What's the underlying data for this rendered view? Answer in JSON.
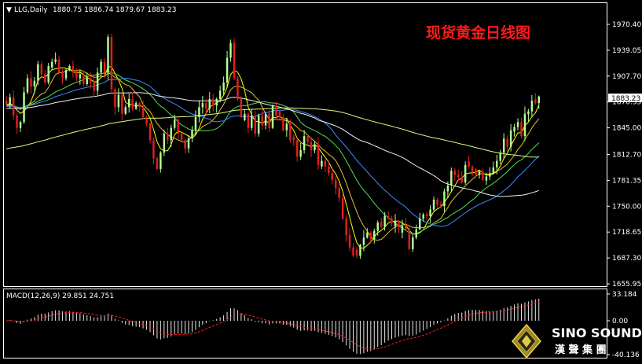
{
  "header": {
    "symbol": "LLG,Daily",
    "ohlc": "1880.75 1886.74 1879.67 1883.23"
  },
  "title": "现货黄金日线图",
  "macd_header": "MACD(12,26,9) 29.851 24.751",
  "brand": {
    "name": "SINO SOUND",
    "chinese": "漢 聲 集 團"
  },
  "colors": {
    "background": "#000000",
    "up_candle": "#b4ff96",
    "down_candle": "#e61e1e",
    "grid": "#3a3a3a",
    "axis": "#ffffff",
    "title": "#ff1a1a",
    "ma5": "#ffff00",
    "ma10": "#e0c030",
    "ma20": "#50e050",
    "ma30": "#3c8cff",
    "ma60": "#f0f0f0",
    "ma120": "#d8ff80",
    "macd_hist": "#e8e8e8",
    "macd_signal": "#ff2020"
  },
  "chart_data": [
    {
      "type": "candlestick",
      "title": "现货黄金日线图",
      "price_axis_ticks": [
        1970.4,
        1939.05,
        1907.7,
        1876.35,
        1845.0,
        1812.7,
        1781.35,
        1750.0,
        1718.65,
        1687.3,
        1655.95
      ],
      "last_price": 1883.23,
      "ylim": [
        1655.95,
        1985
      ],
      "closes": [
        1873,
        1882,
        1860,
        1845,
        1852,
        1888,
        1905,
        1895,
        1902,
        1922,
        1910,
        1900,
        1920,
        1925,
        1928,
        1912,
        1905,
        1915,
        1920,
        1912,
        1906,
        1910,
        1898,
        1905,
        1900,
        1890,
        1912,
        1925,
        1912,
        1955,
        1892,
        1870,
        1885,
        1862,
        1870,
        1880,
        1868,
        1875,
        1870,
        1858,
        1850,
        1830,
        1808,
        1795,
        1815,
        1838,
        1830,
        1845,
        1855,
        1838,
        1830,
        1820,
        1832,
        1842,
        1858,
        1870,
        1875,
        1868,
        1880,
        1872,
        1880,
        1890,
        1900,
        1930,
        1948,
        1905,
        1880,
        1858,
        1862,
        1845,
        1860,
        1838,
        1860,
        1848,
        1862,
        1845,
        1872,
        1860,
        1858,
        1842,
        1850,
        1830,
        1830,
        1810,
        1818,
        1835,
        1828,
        1818,
        1825,
        1800,
        1805,
        1798,
        1790,
        1782,
        1772,
        1760,
        1735,
        1715,
        1700,
        1690,
        1690,
        1703,
        1712,
        1718,
        1710,
        1720,
        1730,
        1725,
        1738,
        1735,
        1730,
        1732,
        1725,
        1726,
        1722,
        1698,
        1712,
        1722,
        1735,
        1740,
        1738,
        1746,
        1758,
        1752,
        1750,
        1768,
        1775,
        1793,
        1788,
        1785,
        1779,
        1800,
        1798,
        1791,
        1788,
        1792,
        1782,
        1786,
        1790,
        1797,
        1805,
        1815,
        1832,
        1822,
        1842,
        1846,
        1852,
        1835,
        1862,
        1865,
        1878,
        1875,
        1883
      ],
      "bullish": [
        false,
        true,
        false,
        false,
        true,
        true,
        true,
        false,
        true,
        true,
        false,
        false,
        true,
        true,
        true,
        false,
        false,
        true,
        true,
        false,
        false,
        true,
        false,
        true,
        false,
        false,
        true,
        true,
        false,
        true,
        false,
        false,
        true,
        false,
        true,
        true,
        false,
        true,
        false,
        false,
        false,
        false,
        false,
        false,
        true,
        true,
        false,
        true,
        true,
        false,
        false,
        false,
        true,
        true,
        true,
        true,
        true,
        false,
        true,
        false,
        true,
        true,
        true,
        true,
        true,
        false,
        false,
        false,
        true,
        false,
        true,
        false,
        true,
        false,
        true,
        false,
        true,
        false,
        false,
        false,
        true,
        false,
        false,
        false,
        true,
        true,
        false,
        false,
        true,
        false,
        true,
        false,
        false,
        false,
        false,
        false,
        false,
        false,
        false,
        false,
        false,
        true,
        true,
        true,
        false,
        true,
        true,
        false,
        true,
        false,
        false,
        true,
        false,
        true,
        false,
        false,
        true,
        true,
        true,
        true,
        false,
        true,
        true,
        false,
        false,
        true,
        true,
        true,
        false,
        false,
        false,
        true,
        false,
        false,
        false,
        true,
        false,
        true,
        true,
        true,
        true,
        true,
        true,
        false,
        true,
        true,
        true,
        false,
        true,
        true,
        true,
        false,
        true
      ],
      "ma_periods": [
        5,
        10,
        20,
        30,
        60,
        120
      ],
      "macd": {
        "params": [
          12,
          26,
          9
        ],
        "macd_value": 29.851,
        "signal_value": 24.751,
        "axis_ticks": [
          33.184,
          0.0,
          -40.136
        ]
      }
    }
  ]
}
